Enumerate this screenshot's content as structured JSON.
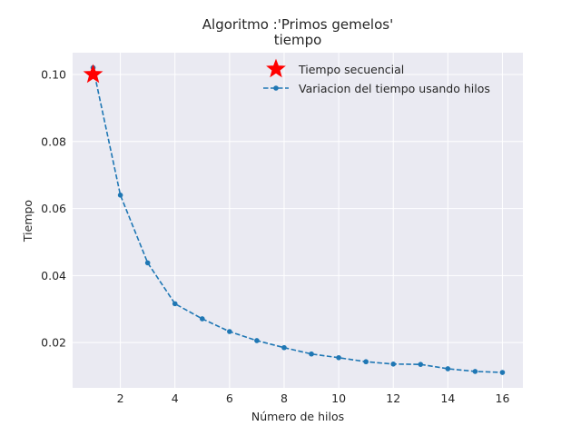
{
  "chart_data": {
    "type": "line",
    "title_lines": [
      "Algoritmo :'Primos gemelos'",
      "tiempo"
    ],
    "xlabel": "Número de hilos",
    "ylabel": "Tiempo",
    "xlim": [
      0.25,
      16.75
    ],
    "ylim": [
      0.0065,
      0.1065
    ],
    "xticks": [
      2,
      4,
      6,
      8,
      10,
      12,
      14,
      16
    ],
    "yticks": [
      0.02,
      0.04,
      0.06,
      0.08,
      0.1
    ],
    "ytick_labels": [
      "0.02",
      "0.04",
      "0.06",
      "0.08",
      "0.10"
    ],
    "grid": true,
    "legend_position": "top-right",
    "series": [
      {
        "name": "Tiempo secuencial",
        "style": "star-marker",
        "color": "#ff0000",
        "x": [
          1
        ],
        "y": [
          0.1
        ]
      },
      {
        "name": "Variacion del tiempo usando hilos",
        "style": "dashed-line-dot-marker",
        "color": "#1f77b4",
        "x": [
          1,
          2,
          3,
          4,
          5,
          6,
          7,
          8,
          9,
          10,
          11,
          12,
          13,
          14,
          15,
          16
        ],
        "y": [
          0.102,
          0.064,
          0.0438,
          0.0316,
          0.0271,
          0.0233,
          0.0206,
          0.0185,
          0.0166,
          0.0155,
          0.0143,
          0.0136,
          0.0135,
          0.0122,
          0.0114,
          0.0111
        ]
      }
    ]
  },
  "colors": {
    "plot_background": "#eaeaf2",
    "grid": "#ffffff",
    "text": "#262626"
  }
}
